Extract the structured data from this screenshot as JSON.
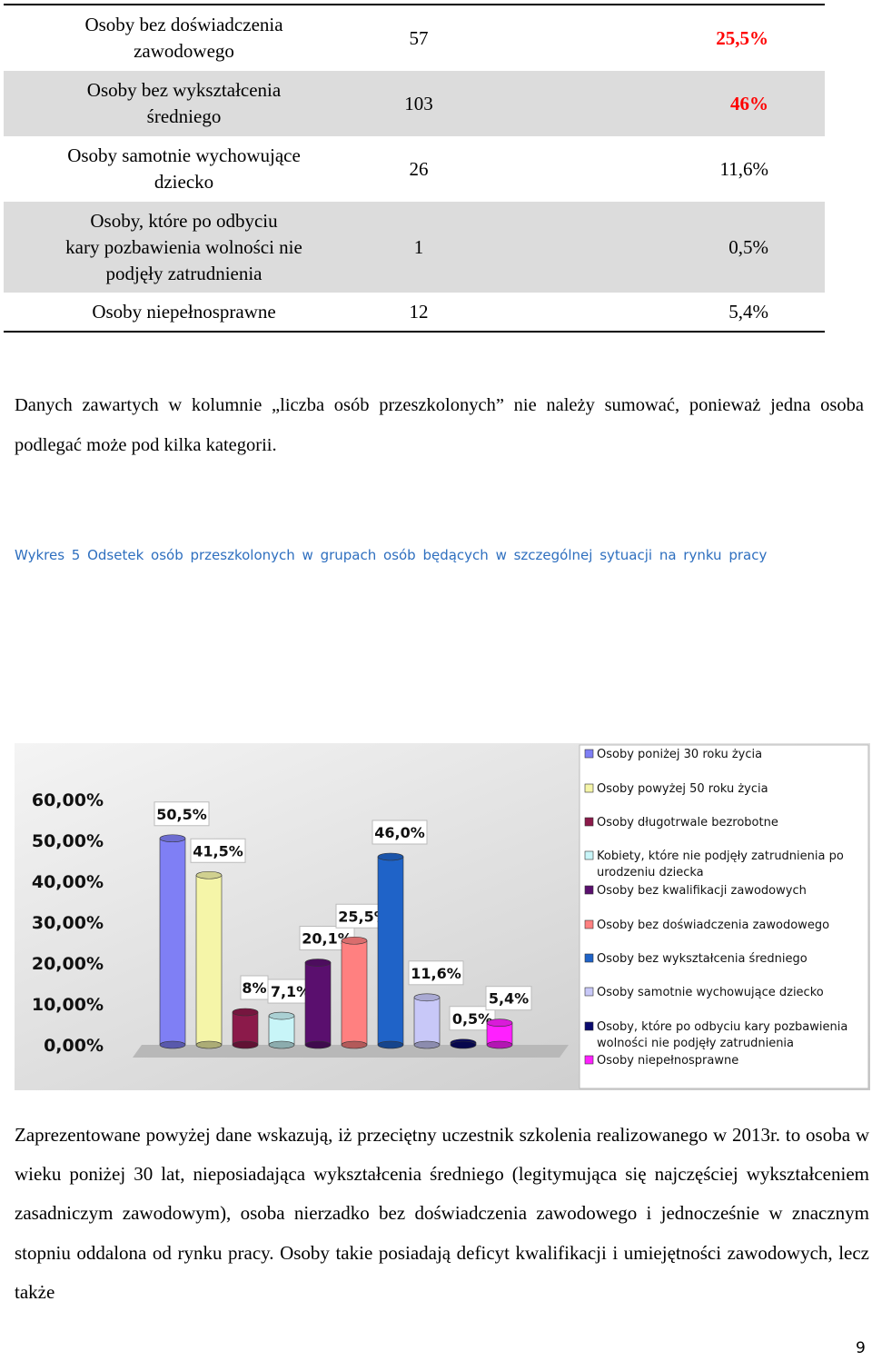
{
  "table": {
    "rows": [
      {
        "label": "Osoby bez doświadczenia\nzawodowego",
        "count": "57",
        "pct": "25,5%",
        "highlight": true
      },
      {
        "label": "Osoby bez wykształcenia\nśredniego",
        "count": "103",
        "pct": "46%",
        "highlight": true
      },
      {
        "label": "Osoby samotnie wychowujące\ndziecko",
        "count": "26",
        "pct": "11,6%",
        "highlight": false
      },
      {
        "label": "Osoby, które po odbyciu\nkary pozbawienia wolności nie\npodjęły zatrudnienia",
        "count": "1",
        "pct": "0,5%",
        "highlight": false
      },
      {
        "label": "Osoby niepełnosprawne",
        "count": "12",
        "pct": "5,4%",
        "highlight": false
      }
    ]
  },
  "note": "Danych zawartych w kolumnie „liczba osób przeszkolonych” nie należy sumować, ponieważ jedna osoba podlegać może pod kilka kategorii.",
  "caption": "Wykres 5 Odsetek osób przeszkolonych w grupach osób będących w szczególnej sytuacji na rynku pracy",
  "chart_data": {
    "type": "bar",
    "categories": [
      "Osoby poniżej 30 roku życia",
      "Osoby powyżej 50 roku życia",
      "Osoby długotrwale bezrobotne",
      "Kobiety, które nie podjęły zatrudnienia po urodzeniu dziecka",
      "Osoby bez kwalifikacji zawodowych",
      "Osoby bez doświadczenia zawodowego",
      "Osoby bez wykształcenia średniego",
      "Osoby samotnie wychowujące dziecko",
      "Osoby, które po odbyciu kary pozbawienia wolności nie podjęły zatrudnienia",
      "Osoby niepełnosprawne"
    ],
    "values": [
      50.5,
      41.5,
      8,
      7.1,
      20.1,
      25.5,
      46.0,
      11.6,
      0.5,
      5.4
    ],
    "value_labels": [
      "50,5%",
      "41,5%",
      "8%",
      "7,1%",
      "20,1%",
      "25,5%",
      "46,0%",
      "11,6%",
      "0,5%",
      "5,4%"
    ],
    "series_order_in_plot": [
      0,
      1,
      2,
      3,
      4,
      5,
      6,
      7,
      8,
      9
    ],
    "colors": [
      "#7f7ff5",
      "#f5f5a8",
      "#8b1a4a",
      "#c8f5f8",
      "#5a0f6e",
      "#ff8080",
      "#1f63c8",
      "#c8c8f8",
      "#0a0a6e",
      "#ff20ff"
    ],
    "legend": [
      "Osoby poniżej 30 roku życia",
      "Osoby powyżej 50 roku życia",
      "Osoby długotrwale bezrobotne",
      "Kobiety, które nie podjęły zatrudnienia po urodzeniu dziecka",
      "Osoby bez kwalifikacji zawodowych",
      "Osoby bez doświadczenia zawodowego",
      "Osoby bez wykształcenia średniego",
      "Osoby samotnie wychowujące dziecko",
      "Osoby, które po odbyciu kary pozbawienia wolności nie podjęły zatrudnienia",
      "Osoby niepełnosprawne"
    ],
    "yticks": [
      "0,00%",
      "10,00%",
      "20,00%",
      "30,00%",
      "40,00%",
      "50,00%",
      "60,00%"
    ],
    "ylim": [
      0,
      60
    ],
    "legend_position": "right",
    "grid": false
  },
  "paragraph": "Zaprezentowane powyżej dane wskazują, iż przeciętny uczestnik szkolenia realizowanego w 2013r. to osoba w wieku poniżej 30 lat, nieposiadająca wykształcenia średniego (legitymująca się najczęściej wykształceniem zasadniczym zawodowym), osoba nierzadko bez doświadczenia zawodowego i jednocześnie  w znacznym stopniu oddalona od rynku pracy. Osoby takie posiadają deficyt kwalifikacji i umiejętności zawodowych, lecz także",
  "page_number": "9"
}
